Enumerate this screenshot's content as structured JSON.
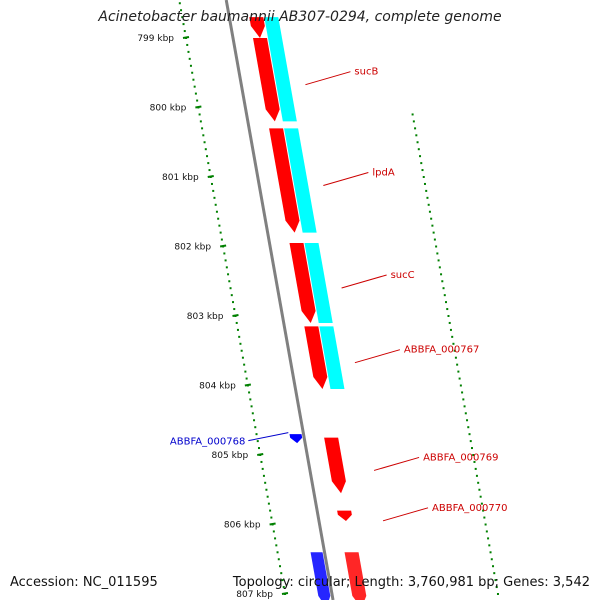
{
  "title": "Acinetobacter baumannii AB307-0294, complete genome",
  "footer": {
    "accession": "Accession: NC_011595",
    "summary": "Topology: circular; Length: 3,760,981 bp; Genes: 3,542"
  },
  "scale": {
    "unit": "kbp",
    "ticks": [
      {
        "kbp": 799,
        "label": "799 kbp"
      },
      {
        "kbp": 800,
        "label": "800 kbp"
      },
      {
        "kbp": 801,
        "label": "801 kbp"
      },
      {
        "kbp": 802,
        "label": "802 kbp"
      },
      {
        "kbp": 803,
        "label": "803 kbp"
      },
      {
        "kbp": 804,
        "label": "804 kbp"
      },
      {
        "kbp": 805,
        "label": "805 kbp"
      },
      {
        "kbp": 806,
        "label": "806 kbp"
      },
      {
        "kbp": 807,
        "label": "807 kbp"
      }
    ]
  },
  "colors": {
    "forward_cds": "#ff0000",
    "reverse_cds": "#0000ff",
    "gene_ring": "#00ffff",
    "backbone": "#808080",
    "ticks": "#008000",
    "forward_label": "#cc0000",
    "reverse_label": "#0000cc"
  },
  "features": [
    {
      "strand": "forward",
      "start_kbp": 798.7,
      "end_kbp": 799.0,
      "label": ""
    },
    {
      "strand": "forward",
      "start_kbp": 799.0,
      "end_kbp": 800.2,
      "label": "sucB"
    },
    {
      "strand": "forward",
      "start_kbp": 800.3,
      "end_kbp": 801.8,
      "label": "lpdA"
    },
    {
      "strand": "forward",
      "start_kbp": 801.95,
      "end_kbp": 803.1,
      "label": "sucC"
    },
    {
      "strand": "forward",
      "start_kbp": 803.15,
      "end_kbp": 804.05,
      "label": "ABBFA_000767"
    },
    {
      "strand": "reverse",
      "start_kbp": 804.7,
      "end_kbp": 804.83,
      "label": "ABBFA_000768"
    },
    {
      "strand": "forward",
      "start_kbp": 804.75,
      "end_kbp": 805.55,
      "label": "ABBFA_000769"
    },
    {
      "strand": "forward",
      "start_kbp": 805.8,
      "end_kbp": 805.95,
      "label": "ABBFA_000770"
    },
    {
      "strand": "forward",
      "start_kbp": 806.4,
      "end_kbp": 807.2,
      "label": ""
    },
    {
      "strand": "reverse",
      "start_kbp": 806.4,
      "end_kbp": 807.2,
      "label": ""
    }
  ],
  "gene_ring": [
    {
      "start_kbp": 798.7,
      "end_kbp": 800.2
    },
    {
      "start_kbp": 800.3,
      "end_kbp": 801.8
    },
    {
      "start_kbp": 801.95,
      "end_kbp": 803.1
    },
    {
      "start_kbp": 803.15,
      "end_kbp": 804.05
    }
  ]
}
